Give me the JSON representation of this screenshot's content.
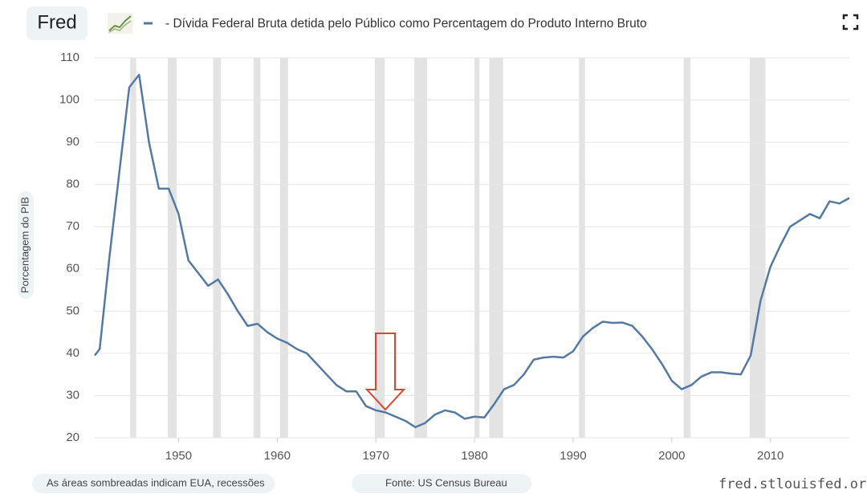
{
  "logo": "Fred",
  "chart_data": {
    "type": "line",
    "title": "- Dívida Federal Bruta detida pelo Público como Percentagem do Produto Interno Bruto",
    "y_label": "Porcentagem do PIB",
    "x": [
      1941.5,
      1942,
      1943,
      1944,
      1945,
      1946,
      1947,
      1948,
      1949,
      1950,
      1951,
      1952,
      1953,
      1954,
      1955,
      1956,
      1957,
      1958,
      1959,
      1960,
      1961,
      1962,
      1963,
      1964,
      1965,
      1966,
      1967,
      1968,
      1969,
      1970,
      1971,
      1972,
      1973,
      1974,
      1975,
      1976,
      1977,
      1978,
      1979,
      1980,
      1981,
      1982,
      1983,
      1984,
      1985,
      1986,
      1987,
      1988,
      1989,
      1990,
      1991,
      1992,
      1993,
      1994,
      1995,
      1996,
      1997,
      1998,
      1999,
      2000,
      2001,
      2002,
      2003,
      2004,
      2005,
      2006,
      2007,
      2008,
      2009,
      2010,
      2011,
      2012,
      2013,
      2014,
      2015,
      2016,
      2017,
      2018
    ],
    "series": [
      {
        "name": "Dívida Federal Bruta detida pelo Público como Percentagem do Produto Interno Bruto",
        "color": "#5479a3",
        "values": [
          39.5,
          41,
          63,
          83,
          103,
          106,
          90,
          79,
          79,
          73,
          62,
          59,
          56,
          57.5,
          54,
          50,
          46.5,
          47,
          45,
          43.5,
          42.5,
          41,
          40,
          37.5,
          35,
          32.5,
          31,
          31,
          27.5,
          26.5,
          26,
          25,
          24,
          22.5,
          23.5,
          25.5,
          26.5,
          26,
          24.5,
          25,
          24.8,
          28,
          31.5,
          32.5,
          35,
          38.5,
          39,
          39.2,
          39,
          40.5,
          44,
          46,
          47.5,
          47.2,
          47.3,
          46.5,
          44,
          41,
          37.5,
          33.5,
          31.5,
          32.5,
          34.5,
          35.5,
          35.5,
          35.2,
          35,
          39.5,
          52.5,
          60.5,
          65.5,
          70,
          71.5,
          73,
          72,
          76,
          75.5,
          76.8
        ]
      }
    ],
    "recessions": [
      [
        1945.1,
        1945.7
      ],
      [
        1948.9,
        1949.8
      ],
      [
        1953.5,
        1954.3
      ],
      [
        1957.6,
        1958.3
      ],
      [
        1960.3,
        1961.1
      ],
      [
        1969.9,
        1970.9
      ],
      [
        1973.9,
        1975.2
      ],
      [
        1980.0,
        1980.5
      ],
      [
        1981.5,
        1982.9
      ],
      [
        1990.6,
        1991.2
      ],
      [
        2001.2,
        2001.9
      ],
      [
        2007.9,
        2009.5
      ]
    ],
    "recession_color": "#e3e3e3",
    "xlim": [
      1941.5,
      2018
    ],
    "xticks": [
      1950,
      1960,
      1970,
      1980,
      1990,
      2000,
      2010
    ],
    "ylim": [
      20,
      110
    ],
    "yticks": [
      20,
      30,
      40,
      50,
      60,
      70,
      80,
      90,
      100,
      110
    ],
    "grid": true,
    "note": "As áreas sombreadas indicam EUA, recessões",
    "source": "Fonte: US Census Bureau",
    "site": "fred.stlouisfed.org"
  }
}
